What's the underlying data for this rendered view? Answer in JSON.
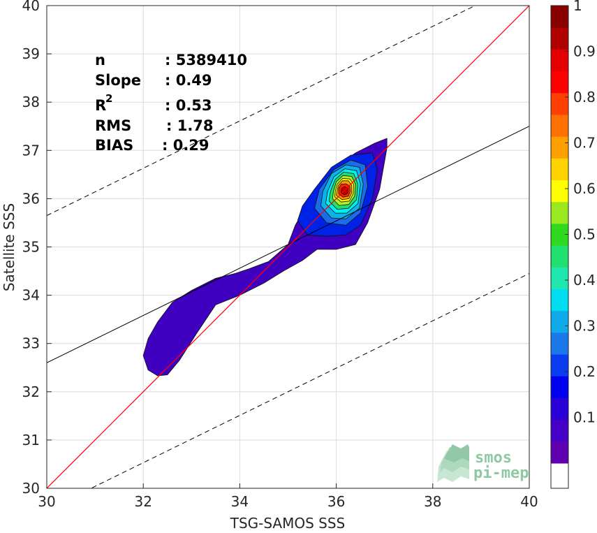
{
  "chart_data": {
    "type": "heatmap",
    "xlabel": "TSG-SAMOS SSS",
    "ylabel": "Satellite SSS",
    "xlim": [
      30,
      40
    ],
    "ylim": [
      30,
      40
    ],
    "x_ticks": [
      "30",
      "32",
      "34",
      "36",
      "38",
      "40"
    ],
    "y_ticks": [
      "30",
      "31",
      "32",
      "33",
      "34",
      "35",
      "36",
      "37",
      "38",
      "39",
      "40"
    ],
    "grid": true,
    "stats": [
      {
        "label": "n",
        "value": ": 5389410"
      },
      {
        "label": "Slope",
        "value": ": 0.49"
      },
      {
        "label": "R",
        "superscript": "2",
        "value": ": 0.53"
      },
      {
        "label": "RMS",
        "value": ": 1.78"
      },
      {
        "label": "BIAS",
        "value": ": 0.29"
      }
    ],
    "lines": {
      "identity": {
        "slope": 1.0,
        "intercept": 0.0,
        "color": "#ff0000"
      },
      "regression": {
        "slope": 0.49,
        "intercept": 17.9,
        "color": "#000000"
      },
      "upper_bound": {
        "slope": 0.49,
        "intercept": 20.95,
        "style": "dashed",
        "color": "#000000"
      },
      "lower_bound": {
        "slope": 0.49,
        "intercept": 14.85,
        "style": "dashed",
        "color": "#000000"
      }
    },
    "density_contours": [
      {
        "level": 0.05,
        "color": "#3f00bf",
        "polygon": [
          [
            32.0,
            32.75
          ],
          [
            32.1,
            32.45
          ],
          [
            32.3,
            32.33
          ],
          [
            32.5,
            32.35
          ],
          [
            32.75,
            32.65
          ],
          [
            33.1,
            33.2
          ],
          [
            33.5,
            33.8
          ],
          [
            34.0,
            34.0
          ],
          [
            34.5,
            34.25
          ],
          [
            34.9,
            34.5
          ],
          [
            35.3,
            34.72
          ],
          [
            35.6,
            34.95
          ],
          [
            36.0,
            34.95
          ],
          [
            36.4,
            35.05
          ],
          [
            36.65,
            35.5
          ],
          [
            36.9,
            36.2
          ],
          [
            37.05,
            37.05
          ],
          [
            37.05,
            37.25
          ],
          [
            36.8,
            37.15
          ],
          [
            36.4,
            36.95
          ],
          [
            35.9,
            36.6
          ],
          [
            35.6,
            36.25
          ],
          [
            35.35,
            35.8
          ],
          [
            35.15,
            35.45
          ],
          [
            35.0,
            35.05
          ],
          [
            34.6,
            34.7
          ],
          [
            34.2,
            34.55
          ],
          [
            33.9,
            34.45
          ],
          [
            33.5,
            34.35
          ],
          [
            33.0,
            34.1
          ],
          [
            32.6,
            33.85
          ],
          [
            32.3,
            33.45
          ],
          [
            32.1,
            33.1
          ],
          [
            32.0,
            32.75
          ]
        ]
      },
      {
        "level": 0.1,
        "color": "#0022e6",
        "polygon": [
          [
            35.2,
            35.55
          ],
          [
            35.4,
            35.25
          ],
          [
            35.8,
            35.22
          ],
          [
            36.2,
            35.25
          ],
          [
            36.5,
            35.45
          ],
          [
            36.75,
            36.0
          ],
          [
            36.85,
            36.6
          ],
          [
            36.75,
            36.95
          ],
          [
            36.3,
            36.9
          ],
          [
            35.9,
            36.65
          ],
          [
            35.55,
            36.2
          ],
          [
            35.3,
            35.85
          ]
        ]
      },
      {
        "level": 0.2,
        "color": "#1a6ce8",
        "polygon": [
          [
            35.55,
            35.8
          ],
          [
            35.8,
            35.5
          ],
          [
            36.2,
            35.45
          ],
          [
            36.5,
            35.7
          ],
          [
            36.65,
            36.25
          ],
          [
            36.6,
            36.7
          ],
          [
            36.3,
            36.8
          ],
          [
            35.95,
            36.6
          ],
          [
            35.65,
            36.2
          ]
        ]
      },
      {
        "level": 0.3,
        "color": "#0ab4ea",
        "polygon": [
          [
            35.68,
            35.85
          ],
          [
            35.9,
            35.6
          ],
          [
            36.2,
            35.58
          ],
          [
            36.48,
            35.8
          ],
          [
            36.56,
            36.3
          ],
          [
            36.48,
            36.65
          ],
          [
            36.2,
            36.7
          ],
          [
            35.9,
            36.52
          ],
          [
            35.72,
            36.15
          ]
        ]
      },
      {
        "level": 0.4,
        "color": "#00f0f0",
        "polygon": [
          [
            35.78,
            35.9
          ],
          [
            35.98,
            35.7
          ],
          [
            36.22,
            35.7
          ],
          [
            36.45,
            35.9
          ],
          [
            36.5,
            36.3
          ],
          [
            36.42,
            36.58
          ],
          [
            36.18,
            36.62
          ],
          [
            35.95,
            36.45
          ],
          [
            35.82,
            36.15
          ]
        ]
      },
      {
        "level": 0.5,
        "color": "#22e070",
        "polygon": [
          [
            35.85,
            35.95
          ],
          [
            36.02,
            35.78
          ],
          [
            36.25,
            35.8
          ],
          [
            36.42,
            35.98
          ],
          [
            36.45,
            36.3
          ],
          [
            36.36,
            36.52
          ],
          [
            36.15,
            36.55
          ],
          [
            35.98,
            36.4
          ],
          [
            35.88,
            36.15
          ]
        ]
      },
      {
        "level": 0.6,
        "color": "#aef020",
        "polygon": [
          [
            35.92,
            36.0
          ],
          [
            36.06,
            35.86
          ],
          [
            36.26,
            35.88
          ],
          [
            36.38,
            36.05
          ],
          [
            36.4,
            36.3
          ],
          [
            36.32,
            36.46
          ],
          [
            36.14,
            36.48
          ],
          [
            36.0,
            36.35
          ],
          [
            35.94,
            36.15
          ]
        ]
      },
      {
        "level": 0.7,
        "color": "#fff000",
        "polygon": [
          [
            35.97,
            36.04
          ],
          [
            36.1,
            35.93
          ],
          [
            36.27,
            35.95
          ],
          [
            36.35,
            36.1
          ],
          [
            36.36,
            36.3
          ],
          [
            36.28,
            36.41
          ],
          [
            36.13,
            36.42
          ],
          [
            36.02,
            36.3
          ],
          [
            35.98,
            36.15
          ]
        ]
      },
      {
        "level": 0.8,
        "color": "#ff9a00",
        "polygon": [
          [
            36.0,
            36.07
          ],
          [
            36.12,
            35.98
          ],
          [
            36.26,
            36.0
          ],
          [
            36.32,
            36.12
          ],
          [
            36.32,
            36.28
          ],
          [
            36.25,
            36.37
          ],
          [
            36.13,
            36.37
          ],
          [
            36.04,
            36.27
          ]
        ]
      },
      {
        "level": 0.9,
        "color": "#ff2000",
        "polygon": [
          [
            36.05,
            36.1
          ],
          [
            36.14,
            36.03
          ],
          [
            36.25,
            36.05
          ],
          [
            36.29,
            36.15
          ],
          [
            36.28,
            36.26
          ],
          [
            36.2,
            36.31
          ],
          [
            36.1,
            36.3
          ],
          [
            36.05,
            36.22
          ]
        ]
      },
      {
        "level": 1.0,
        "color": "#c00000",
        "polygon": [
          [
            36.1,
            36.12
          ],
          [
            36.17,
            36.08
          ],
          [
            36.24,
            36.12
          ],
          [
            36.24,
            36.22
          ],
          [
            36.17,
            36.25
          ],
          [
            36.11,
            36.21
          ]
        ]
      }
    ],
    "colorbar": {
      "range": [
        0,
        1
      ],
      "ticks": [
        "0.1",
        "0.2",
        "0.3",
        "0.4",
        "0.5",
        "0.6",
        "0.7",
        "0.8",
        "0.9",
        "1"
      ],
      "colors": [
        "#ffffff",
        "#6000b0",
        "#4400c6",
        "#2a00d8",
        "#0000f0",
        "#0a3cf0",
        "#1a78ea",
        "#10aaea",
        "#00dcf0",
        "#20e6b0",
        "#20e070",
        "#30d820",
        "#9ae820",
        "#ffff00",
        "#ffd200",
        "#ffa000",
        "#ff7000",
        "#ff4000",
        "#ff0000",
        "#e40000",
        "#b00000",
        "#880000"
      ]
    },
    "logo": {
      "line1": "smos",
      "line2": "pi-mep"
    }
  }
}
